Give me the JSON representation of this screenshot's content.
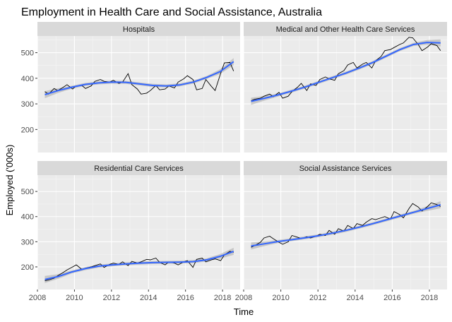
{
  "colors": {
    "panel_bg": "#ebebeb",
    "strip_bg": "#d9d9d9",
    "grid_major": "#ffffff",
    "grid_minor": "#f5f5f5",
    "raw_line": "#000000",
    "smooth_line": "#3366ff",
    "ribbon": "#999999"
  },
  "chart_data": {
    "type": "line",
    "title": "Employment in Health Care and Social Assistance, Australia",
    "xlabel": "Time",
    "ylabel": "Employed ('000s)",
    "xlim": [
      2008.0,
      2018.95
    ],
    "ylim": [
      110,
      565
    ],
    "x_ticks": [
      2008,
      2010,
      2012,
      2014,
      2016,
      2018
    ],
    "y_ticks": [
      200,
      300,
      400,
      500
    ],
    "grid": true,
    "smoother": "loess with confidence band",
    "panels": [
      {
        "name": "Hospitals",
        "x": [
          2008.4,
          2008.6,
          2008.9,
          2009.1,
          2009.4,
          2009.6,
          2009.9,
          2010.1,
          2010.4,
          2010.6,
          2010.9,
          2011.1,
          2011.4,
          2011.6,
          2011.9,
          2012.1,
          2012.4,
          2012.6,
          2012.9,
          2013.1,
          2013.4,
          2013.6,
          2013.9,
          2014.1,
          2014.4,
          2014.6,
          2014.9,
          2015.1,
          2015.4,
          2015.6,
          2015.9,
          2016.1,
          2016.4,
          2016.6,
          2016.9,
          2017.1,
          2017.4,
          2017.6,
          2017.9,
          2018.1,
          2018.4,
          2018.6
        ],
        "values": [
          348,
          338,
          360,
          352,
          365,
          375,
          358,
          370,
          372,
          360,
          370,
          388,
          395,
          388,
          385,
          392,
          380,
          385,
          418,
          375,
          358,
          338,
          342,
          352,
          372,
          355,
          358,
          370,
          362,
          385,
          398,
          410,
          395,
          355,
          360,
          395,
          368,
          352,
          420,
          460,
          462,
          428
        ],
        "smooth": [
          336,
          352,
          365,
          376,
          382,
          385,
          384,
          378,
          372,
          370,
          374,
          385,
          403,
          426,
          465
        ]
      },
      {
        "name": "Medical and Other Health Care Services",
        "x": [
          2008.4,
          2008.6,
          2008.9,
          2009.1,
          2009.4,
          2009.6,
          2009.9,
          2010.1,
          2010.4,
          2010.6,
          2010.9,
          2011.1,
          2011.4,
          2011.6,
          2011.9,
          2012.1,
          2012.4,
          2012.6,
          2012.9,
          2013.1,
          2013.4,
          2013.6,
          2013.9,
          2014.1,
          2014.4,
          2014.6,
          2014.9,
          2015.1,
          2015.4,
          2015.6,
          2015.9,
          2016.1,
          2016.4,
          2016.6,
          2016.9,
          2017.1,
          2017.4,
          2017.6,
          2017.9,
          2018.1,
          2018.4,
          2018.6
        ],
        "values": [
          312,
          318,
          322,
          330,
          338,
          328,
          345,
          322,
          330,
          348,
          365,
          380,
          352,
          378,
          372,
          395,
          405,
          398,
          392,
          418,
          430,
          452,
          462,
          440,
          455,
          462,
          440,
          468,
          485,
          508,
          512,
          520,
          532,
          538,
          560,
          558,
          532,
          508,
          522,
          535,
          528,
          508
        ],
        "smooth": [
          310,
          322,
          335,
          350,
          366,
          384,
          402,
          420,
          440,
          462,
          487,
          512,
          532,
          540,
          538
        ]
      },
      {
        "name": "Residential Care Services",
        "x": [
          2008.4,
          2008.6,
          2008.9,
          2009.1,
          2009.4,
          2009.6,
          2009.9,
          2010.1,
          2010.4,
          2010.6,
          2010.9,
          2011.1,
          2011.4,
          2011.6,
          2011.9,
          2012.1,
          2012.4,
          2012.6,
          2012.9,
          2013.1,
          2013.4,
          2013.6,
          2013.9,
          2014.1,
          2014.4,
          2014.6,
          2014.9,
          2015.1,
          2015.4,
          2015.6,
          2015.9,
          2016.1,
          2016.4,
          2016.6,
          2016.9,
          2017.1,
          2017.4,
          2017.6,
          2017.9,
          2018.1,
          2018.4,
          2018.6
        ],
        "values": [
          145,
          148,
          155,
          165,
          178,
          188,
          200,
          208,
          190,
          195,
          200,
          205,
          212,
          198,
          210,
          215,
          210,
          220,
          205,
          222,
          215,
          220,
          230,
          228,
          235,
          218,
          208,
          220,
          215,
          208,
          220,
          225,
          198,
          230,
          235,
          220,
          228,
          232,
          225,
          248,
          262,
          258
        ],
        "smooth": [
          150,
          162,
          180,
          193,
          203,
          208,
          212,
          215,
          217,
          218,
          219,
          221,
          228,
          242,
          262
        ]
      },
      {
        "name": "Social Assistance Services",
        "x": [
          2008.4,
          2008.6,
          2008.9,
          2009.1,
          2009.4,
          2009.6,
          2009.9,
          2010.1,
          2010.4,
          2010.6,
          2010.9,
          2011.1,
          2011.4,
          2011.6,
          2011.9,
          2012.1,
          2012.4,
          2012.6,
          2012.9,
          2013.1,
          2013.4,
          2013.6,
          2013.9,
          2014.1,
          2014.4,
          2014.6,
          2014.9,
          2015.1,
          2015.4,
          2015.6,
          2015.9,
          2016.1,
          2016.4,
          2016.6,
          2016.9,
          2017.1,
          2017.4,
          2017.6,
          2017.9,
          2018.1,
          2018.4,
          2018.6
        ],
        "values": [
          278,
          285,
          298,
          315,
          322,
          312,
          298,
          290,
          300,
          325,
          318,
          312,
          320,
          315,
          322,
          330,
          325,
          345,
          330,
          352,
          342,
          365,
          352,
          372,
          365,
          378,
          392,
          388,
          395,
          400,
          390,
          420,
          408,
          395,
          432,
          452,
          438,
          422,
          440,
          455,
          448,
          440
        ],
        "smooth": [
          283,
          292,
          301,
          308,
          316,
          324,
          334,
          345,
          358,
          372,
          387,
          402,
          417,
          432,
          447
        ]
      }
    ]
  }
}
